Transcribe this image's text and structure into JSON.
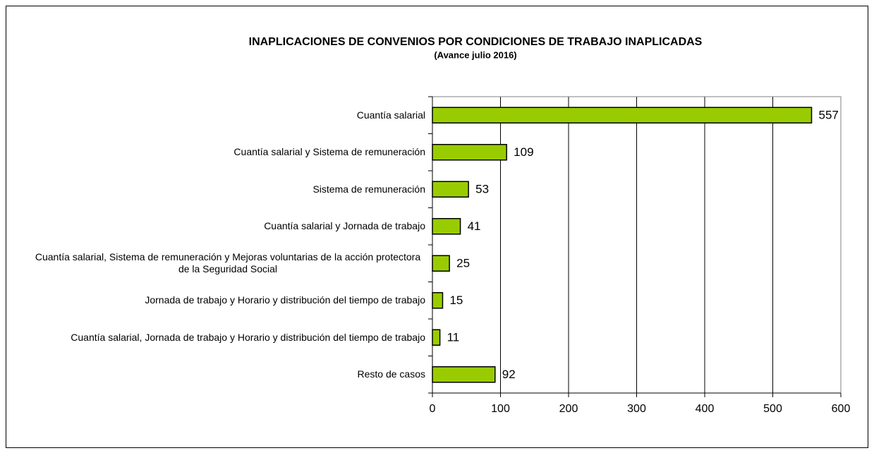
{
  "chart_data": {
    "type": "bar",
    "orientation": "horizontal",
    "title": "INAPLICACIONES DE CONVENIOS POR CONDICIONES DE TRABAJO INAPLICADAS",
    "subtitle": "(Avance julio 2016)",
    "categories": [
      "Cuantía salarial",
      "Cuantía salarial y Sistema de remuneración",
      "Sistema de remuneración",
      "Cuantía salarial y Jornada de trabajo",
      "Cuantía salarial, Sistema de remuneración y Mejoras voluntarias de la acción protectora de la Seguridad Social",
      "Jornada de trabajo y Horario y distribución del tiempo de trabajo",
      "Cuantía salarial, Jornada de trabajo y Horario y distribución del tiempo de trabajo",
      "Resto de casos"
    ],
    "values": [
      557,
      109,
      53,
      41,
      25,
      15,
      11,
      92
    ],
    "color": "#99cc00",
    "xlim": [
      0,
      600
    ],
    "xticks": [
      0,
      100,
      200,
      300,
      400,
      500,
      600
    ],
    "grid": true
  }
}
